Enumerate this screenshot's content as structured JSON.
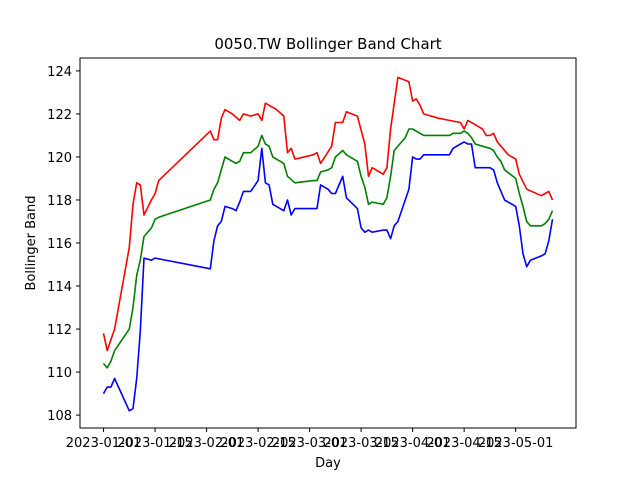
{
  "chart_data": {
    "type": "line",
    "title": "0050.TW Bollinger Band Chart",
    "xlabel": "Day",
    "ylabel": "Bollinger Band",
    "x_tick_labels": [
      "2023-01-01",
      "2023-01-15",
      "2023-02-01",
      "2023-02-15",
      "2023-03-01",
      "2023-03-15",
      "2023-04-01",
      "2023-04-15",
      "2023-05-01"
    ],
    "y_tick_labels": [
      "108",
      "110",
      "112",
      "114",
      "116",
      "118",
      "120",
      "122",
      "124"
    ],
    "ylim": [
      107.4,
      124.6
    ],
    "grid": false,
    "legend": "none",
    "series": [
      {
        "color": "#ff0000",
        "points": [
          [
            0,
            111.8
          ],
          [
            1,
            111.0
          ],
          [
            3,
            112.0
          ],
          [
            7,
            115.8
          ],
          [
            8,
            117.8
          ],
          [
            9,
            118.8
          ],
          [
            10,
            118.7
          ],
          [
            11,
            117.3
          ],
          [
            13,
            118.0
          ],
          [
            14,
            118.3
          ],
          [
            15,
            118.9
          ],
          [
            29,
            121.2
          ],
          [
            30,
            120.8
          ],
          [
            31,
            120.8
          ],
          [
            32,
            121.8
          ],
          [
            33,
            122.2
          ],
          [
            35,
            122.0
          ],
          [
            37,
            121.7
          ],
          [
            38,
            122.0
          ],
          [
            40,
            121.9
          ],
          [
            42,
            122.0
          ],
          [
            43,
            121.7
          ],
          [
            44,
            122.5
          ],
          [
            47,
            122.2
          ],
          [
            49,
            121.9
          ],
          [
            50,
            120.2
          ],
          [
            51,
            120.4
          ],
          [
            52,
            119.9
          ],
          [
            57,
            120.1
          ],
          [
            58,
            120.2
          ],
          [
            59,
            119.7
          ],
          [
            62,
            120.5
          ],
          [
            63,
            121.6
          ],
          [
            64,
            121.6
          ],
          [
            65,
            121.6
          ],
          [
            66,
            122.1
          ],
          [
            69,
            121.9
          ],
          [
            71,
            120.6
          ],
          [
            72,
            119.1
          ],
          [
            73,
            119.5
          ],
          [
            76,
            119.2
          ],
          [
            77,
            119.5
          ],
          [
            78,
            121.3
          ],
          [
            80,
            123.7
          ],
          [
            83,
            123.5
          ],
          [
            84,
            122.6
          ],
          [
            85,
            122.7
          ],
          [
            86,
            122.4
          ],
          [
            87,
            122.0
          ],
          [
            91,
            121.8
          ],
          [
            94,
            121.7
          ],
          [
            97,
            121.6
          ],
          [
            98,
            121.3
          ],
          [
            99,
            121.7
          ],
          [
            101,
            121.5
          ],
          [
            103,
            121.3
          ],
          [
            104,
            121.0
          ],
          [
            105,
            121.0
          ],
          [
            106,
            121.1
          ],
          [
            107,
            120.7
          ],
          [
            110,
            120.1
          ],
          [
            112,
            119.9
          ],
          [
            113,
            119.2
          ],
          [
            115,
            118.5
          ],
          [
            119,
            118.2
          ],
          [
            120,
            118.3
          ],
          [
            121,
            118.4
          ],
          [
            122,
            118.0
          ]
        ]
      },
      {
        "color": "#008000",
        "points": [
          [
            0,
            110.4
          ],
          [
            1,
            110.2
          ],
          [
            2,
            110.5
          ],
          [
            3,
            111.0
          ],
          [
            7,
            112.0
          ],
          [
            8,
            113.0
          ],
          [
            9,
            114.5
          ],
          [
            10,
            115.2
          ],
          [
            11,
            116.3
          ],
          [
            13,
            116.7
          ],
          [
            14,
            117.1
          ],
          [
            15,
            117.2
          ],
          [
            29,
            118.0
          ],
          [
            30,
            118.5
          ],
          [
            31,
            118.8
          ],
          [
            32,
            119.4
          ],
          [
            33,
            120.0
          ],
          [
            35,
            119.8
          ],
          [
            36,
            119.7
          ],
          [
            37,
            119.8
          ],
          [
            38,
            120.2
          ],
          [
            40,
            120.2
          ],
          [
            42,
            120.5
          ],
          [
            43,
            121.0
          ],
          [
            44,
            120.6
          ],
          [
            45,
            120.5
          ],
          [
            46,
            120.0
          ],
          [
            49,
            119.7
          ],
          [
            50,
            119.1
          ],
          [
            52,
            118.8
          ],
          [
            57,
            118.9
          ],
          [
            58,
            118.9
          ],
          [
            59,
            119.3
          ],
          [
            61,
            119.4
          ],
          [
            62,
            119.5
          ],
          [
            63,
            120.0
          ],
          [
            65,
            120.3
          ],
          [
            66,
            120.1
          ],
          [
            69,
            119.8
          ],
          [
            70,
            119.1
          ],
          [
            71,
            118.6
          ],
          [
            72,
            117.8
          ],
          [
            73,
            117.9
          ],
          [
            76,
            117.8
          ],
          [
            77,
            118.1
          ],
          [
            78,
            119.1
          ],
          [
            79,
            120.3
          ],
          [
            82,
            120.9
          ],
          [
            83,
            121.3
          ],
          [
            84,
            121.3
          ],
          [
            86,
            121.1
          ],
          [
            87,
            121.0
          ],
          [
            91,
            121.0
          ],
          [
            94,
            121.0
          ],
          [
            95,
            121.1
          ],
          [
            97,
            121.1
          ],
          [
            98,
            121.2
          ],
          [
            99,
            121.1
          ],
          [
            100,
            120.9
          ],
          [
            101,
            120.6
          ],
          [
            103,
            120.5
          ],
          [
            105,
            120.4
          ],
          [
            106,
            120.3
          ],
          [
            107,
            120.0
          ],
          [
            108,
            119.8
          ],
          [
            109,
            119.4
          ],
          [
            112,
            119.0
          ],
          [
            113,
            118.3
          ],
          [
            114,
            117.7
          ],
          [
            115,
            117.0
          ],
          [
            116,
            116.8
          ],
          [
            119,
            116.8
          ],
          [
            120,
            116.9
          ],
          [
            121,
            117.1
          ],
          [
            122,
            117.5
          ]
        ]
      },
      {
        "color": "#0000ff",
        "points": [
          [
            0,
            109.0
          ],
          [
            1,
            109.3
          ],
          [
            2,
            109.3
          ],
          [
            3,
            109.7
          ],
          [
            7,
            108.2
          ],
          [
            8,
            108.3
          ],
          [
            9,
            109.7
          ],
          [
            10,
            111.9
          ],
          [
            11,
            115.3
          ],
          [
            13,
            115.2
          ],
          [
            14,
            115.3
          ],
          [
            29,
            114.8
          ],
          [
            30,
            116.1
          ],
          [
            31,
            116.8
          ],
          [
            32,
            117.0
          ],
          [
            33,
            117.7
          ],
          [
            35,
            117.6
          ],
          [
            36,
            117.5
          ],
          [
            37,
            117.9
          ],
          [
            38,
            118.4
          ],
          [
            40,
            118.4
          ],
          [
            42,
            118.9
          ],
          [
            43,
            120.4
          ],
          [
            44,
            118.8
          ],
          [
            45,
            118.7
          ],
          [
            46,
            117.8
          ],
          [
            49,
            117.5
          ],
          [
            50,
            118.0
          ],
          [
            51,
            117.3
          ],
          [
            52,
            117.6
          ],
          [
            57,
            117.6
          ],
          [
            58,
            117.6
          ],
          [
            59,
            118.7
          ],
          [
            61,
            118.5
          ],
          [
            62,
            118.3
          ],
          [
            63,
            118.3
          ],
          [
            65,
            119.1
          ],
          [
            66,
            118.1
          ],
          [
            69,
            117.6
          ],
          [
            70,
            116.7
          ],
          [
            71,
            116.5
          ],
          [
            72,
            116.6
          ],
          [
            73,
            116.5
          ],
          [
            76,
            116.6
          ],
          [
            77,
            116.6
          ],
          [
            78,
            116.2
          ],
          [
            79,
            116.8
          ],
          [
            80,
            117.0
          ],
          [
            83,
            118.5
          ],
          [
            84,
            120.0
          ],
          [
            85,
            119.9
          ],
          [
            86,
            119.9
          ],
          [
            87,
            120.1
          ],
          [
            91,
            120.1
          ],
          [
            94,
            120.1
          ],
          [
            95,
            120.4
          ],
          [
            97,
            120.6
          ],
          [
            98,
            120.7
          ],
          [
            99,
            120.6
          ],
          [
            100,
            120.6
          ],
          [
            101,
            119.5
          ],
          [
            103,
            119.5
          ],
          [
            105,
            119.5
          ],
          [
            106,
            119.4
          ],
          [
            107,
            118.8
          ],
          [
            109,
            118.0
          ],
          [
            112,
            117.7
          ],
          [
            113,
            116.8
          ],
          [
            114,
            115.5
          ],
          [
            115,
            114.9
          ],
          [
            116,
            115.2
          ],
          [
            119,
            115.4
          ],
          [
            120,
            115.5
          ],
          [
            121,
            116.1
          ],
          [
            122,
            117.1
          ]
        ]
      }
    ]
  }
}
